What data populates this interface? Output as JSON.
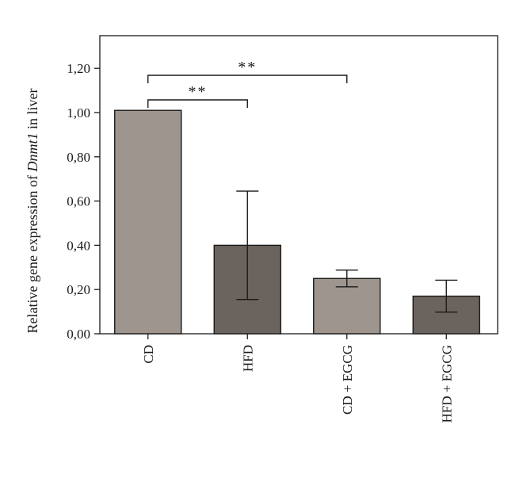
{
  "chart_data": {
    "type": "bar",
    "title": "",
    "xlabel": "",
    "ylabel_prefix": "Relative gene expression of ",
    "ylabel_gene": "Dnmt1",
    "ylabel_suffix": " in liver",
    "ylim": [
      0,
      1.3
    ],
    "yticks": [
      "0,00",
      "0,20",
      "0,40",
      "0,60",
      "0,80",
      "1,00",
      "1,20"
    ],
    "ytick_values": [
      0,
      0.2,
      0.4,
      0.6,
      0.8,
      1.0,
      1.2
    ],
    "categories": [
      "CD",
      "HFD",
      "CD + EGCG",
      "HFD + EGCG"
    ],
    "values": [
      1.01,
      0.4,
      0.25,
      0.17
    ],
    "errors": [
      0,
      0.245,
      0.038,
      0.072
    ],
    "bar_colors": [
      "#9e958f",
      "#6b635d",
      "#9e958f",
      "#6b635d"
    ],
    "significance": [
      {
        "from": 0,
        "to": 1,
        "label": "**",
        "y": 1.07
      },
      {
        "from": 0,
        "to": 2,
        "label": "**",
        "y": 1.17
      }
    ]
  }
}
